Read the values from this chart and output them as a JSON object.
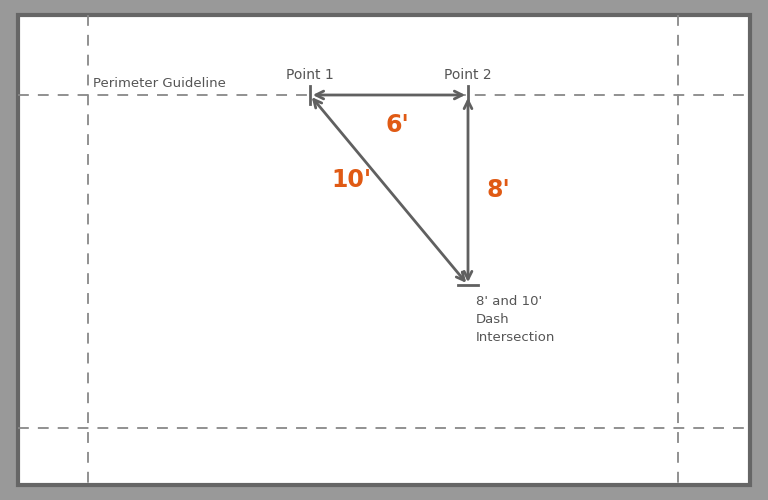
{
  "bg_color": "#999999",
  "panel_color": "#ffffff",
  "border_color": "#666666",
  "dashed_color": "#888888",
  "arrow_color": "#606060",
  "orange_color": "#e05a14",
  "label_color": "#555555",
  "point1_label": "Point 1",
  "point2_label": "Point 2",
  "perimeter_label": "Perimeter Guideline",
  "label_6": "6'",
  "label_8": "8'",
  "label_10": "10'",
  "intersection_label": "8' and 10'\nDash\nIntersection",
  "fig_width": 7.68,
  "fig_height": 5.0,
  "dpi": 100
}
